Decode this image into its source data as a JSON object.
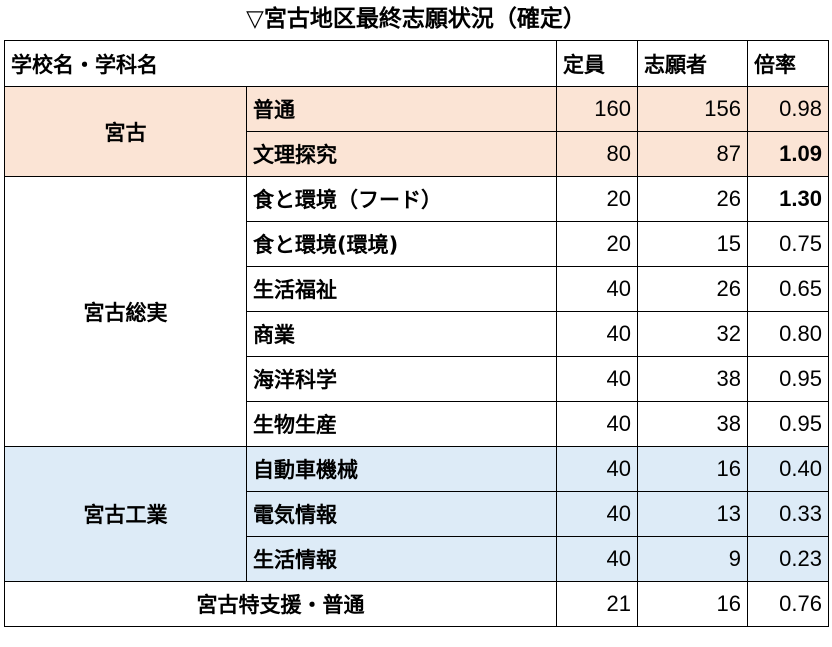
{
  "title": "▽宮古地区最終志願状況（確定）",
  "header": {
    "school_dept": "学校名・学科名",
    "capacity": "定員",
    "applicants": "志願者",
    "ratio": "倍率"
  },
  "groups": [
    {
      "school": "宮古",
      "rows": [
        {
          "dept": "普通",
          "capacity": "160",
          "applicants": "156",
          "ratio": "0.98"
        },
        {
          "dept": "文理探究",
          "capacity": "80",
          "applicants": "87",
          "ratio": "1.09"
        }
      ]
    },
    {
      "school": "宮古総実",
      "rows": [
        {
          "dept": "食と環境（フード）",
          "capacity": "20",
          "applicants": "26",
          "ratio": "1.30"
        },
        {
          "dept": "食と環境(環境)",
          "capacity": "20",
          "applicants": "15",
          "ratio": "0.75"
        },
        {
          "dept": "生活福祉",
          "capacity": "40",
          "applicants": "26",
          "ratio": "0.65"
        },
        {
          "dept": "商業",
          "capacity": "40",
          "applicants": "32",
          "ratio": "0.80"
        },
        {
          "dept": "海洋科学",
          "capacity": "40",
          "applicants": "38",
          "ratio": "0.95"
        },
        {
          "dept": "生物生産",
          "capacity": "40",
          "applicants": "38",
          "ratio": "0.95"
        }
      ]
    },
    {
      "school": "宮古工業",
      "rows": [
        {
          "dept": "自動車機械",
          "capacity": "40",
          "applicants": "16",
          "ratio": "0.40"
        },
        {
          "dept": "電気情報",
          "capacity": "40",
          "applicants": "13",
          "ratio": "0.33"
        },
        {
          "dept": "生活情報",
          "capacity": "40",
          "applicants": "9",
          "ratio": "0.23"
        }
      ]
    }
  ],
  "special": {
    "label": "宮古特支援・普通",
    "capacity": "21",
    "applicants": "16",
    "ratio": "0.76"
  },
  "colors": {
    "pink": "#fbe4d5",
    "blue": "#ddebf7"
  }
}
